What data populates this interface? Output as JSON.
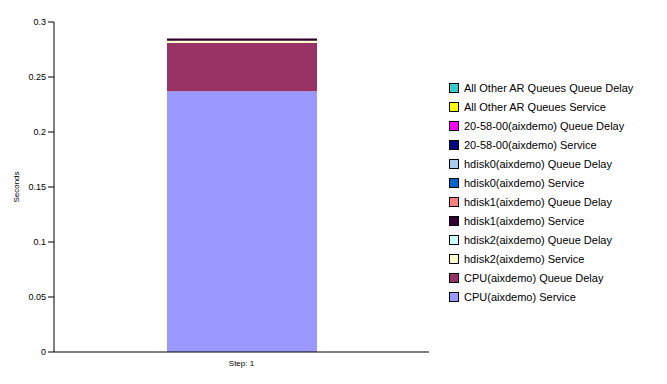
{
  "chart_data": {
    "type": "bar",
    "stacked": true,
    "categories": [
      "Step: 1"
    ],
    "y_label": "Seconds",
    "ylim": [
      0,
      0.3
    ],
    "yticks": [
      0,
      0.05,
      0.1,
      0.15,
      0.2,
      0.25,
      0.3
    ],
    "legend": "right",
    "series": [
      {
        "name": "CPU(aixdemo) Service",
        "color": "#9999ff",
        "values": [
          0.237
        ]
      },
      {
        "name": "CPU(aixdemo) Queue Delay",
        "color": "#993366",
        "values": [
          0.044
        ]
      },
      {
        "name": "hdisk2(aixdemo) Service",
        "color": "#ffffcc",
        "values": [
          0.002
        ]
      },
      {
        "name": "hdisk2(aixdemo) Queue Delay",
        "color": "#ccffff",
        "values": [
          0
        ]
      },
      {
        "name": "hdisk1(aixdemo) Service",
        "color": "#330033",
        "values": [
          0.002
        ]
      },
      {
        "name": "hdisk1(aixdemo) Queue Delay",
        "color": "#ff8080",
        "values": [
          0
        ]
      },
      {
        "name": "hdisk0(aixdemo) Service",
        "color": "#0066cc",
        "values": [
          0
        ]
      },
      {
        "name": "hdisk0(aixdemo) Queue Delay",
        "color": "#a6caf0",
        "values": [
          0
        ]
      },
      {
        "name": "20-58-00(aixdemo) Service",
        "color": "#000080",
        "values": [
          0
        ]
      },
      {
        "name": "20-58-00(aixdemo) Queue Delay",
        "color": "#ff00ff",
        "values": [
          0
        ]
      },
      {
        "name": "All Other AR Queues Service",
        "color": "#ffff00",
        "values": [
          0
        ]
      },
      {
        "name": "All Other AR Queues Queue Delay",
        "color": "#33cccc",
        "values": [
          0
        ]
      }
    ]
  }
}
